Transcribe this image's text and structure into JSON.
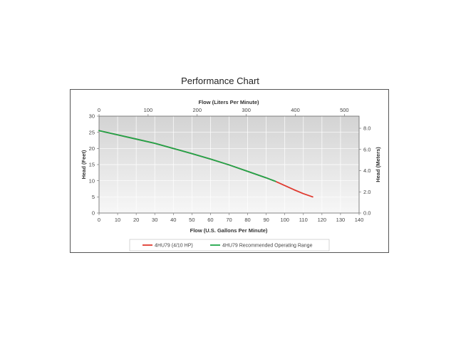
{
  "page_title": "Performance Chart",
  "chart_data": {
    "type": "line",
    "title": "Performance Chart",
    "xlabel": "Flow (U.S. Gallons Per Minute)",
    "ylabel": "Head (Feet)",
    "x2label": "Flow (Liters Per Minute)",
    "y2label": "Head (Meters)",
    "xlim": [
      0,
      140
    ],
    "ylim": [
      0,
      30
    ],
    "x2lim": [
      0,
      529.96
    ],
    "y2lim": [
      0,
      9.144
    ],
    "x_ticks": [
      "0",
      "10",
      "20",
      "30",
      "40",
      "50",
      "60",
      "70",
      "80",
      "90",
      "100",
      "110",
      "120",
      "130",
      "140"
    ],
    "y_ticks": [
      "0",
      "5",
      "10",
      "15",
      "20",
      "25",
      "30"
    ],
    "x2_ticks": [
      {
        "value": 0,
        "label": "0"
      },
      {
        "value": 100,
        "label": "100"
      },
      {
        "value": 200,
        "label": "200"
      },
      {
        "value": 300,
        "label": "300"
      },
      {
        "value": 400,
        "label": "400"
      },
      {
        "value": 500,
        "label": "500"
      }
    ],
    "y2_ticks": [
      {
        "value": 0,
        "label": "0.0"
      },
      {
        "value": 2,
        "label": "2.0"
      },
      {
        "value": 4,
        "label": "4.0"
      },
      {
        "value": 6,
        "label": "6.0"
      },
      {
        "value": 8,
        "label": "8.0"
      }
    ],
    "grid": true,
    "legend": "bottom",
    "series": [
      {
        "name": "4HU79 (4/10 HP)",
        "color": "#e03a2f",
        "x": [
          0,
          10,
          20,
          30,
          40,
          50,
          60,
          70,
          80,
          90,
          95,
          100,
          105,
          110,
          115
        ],
        "y": [
          25.5,
          24.2,
          22.9,
          21.6,
          20.0,
          18.4,
          16.7,
          14.9,
          12.9,
          10.9,
          9.8,
          8.5,
          7.2,
          6.0,
          5.0
        ]
      },
      {
        "name": "4HU79 Recommended Operating Range",
        "color": "#1fa64a",
        "x": [
          0,
          10,
          20,
          30,
          40,
          50,
          60,
          70,
          80,
          90,
          95
        ],
        "y": [
          25.5,
          24.2,
          22.9,
          21.6,
          20.0,
          18.4,
          16.7,
          14.9,
          12.9,
          10.9,
          9.8
        ]
      }
    ]
  }
}
